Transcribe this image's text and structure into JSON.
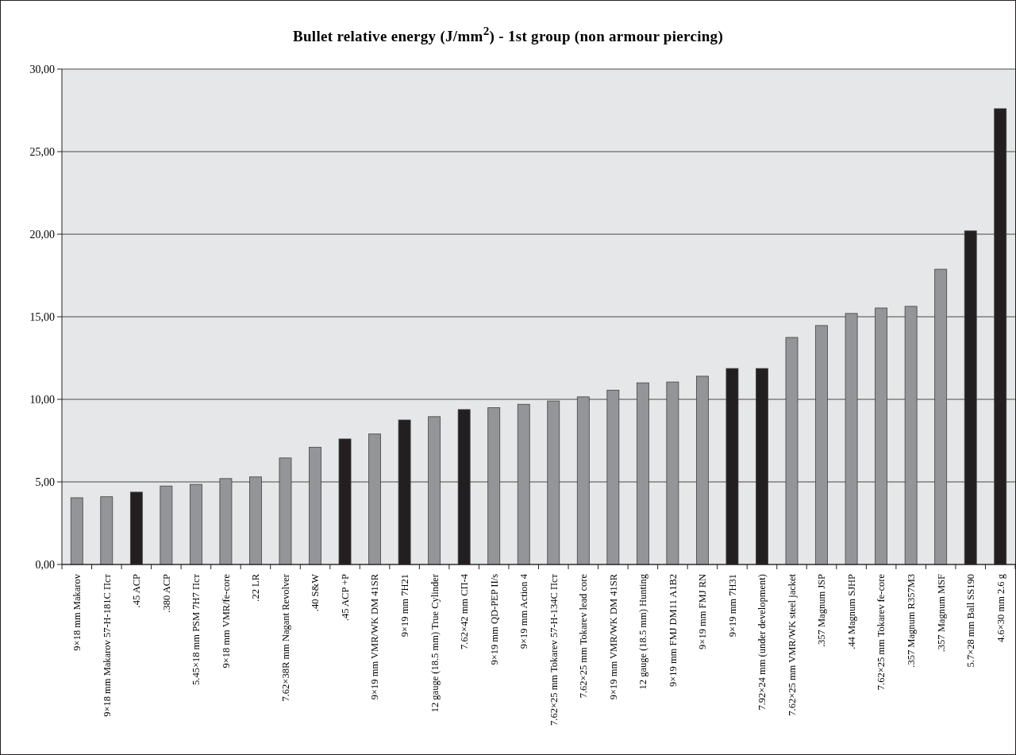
{
  "chart_data": {
    "type": "bar",
    "title": "Bullet relative energy (J/mm$^{2}$) - 1st group (non armour piercing)",
    "categories": [
      "9×18 mm Makarov",
      "9×18 mm Makarov 57-Н-181С Пст",
      ".45 ACP",
      ".380 ACP",
      "5.45×18 mm PSM 7Н7 Пст",
      "9×18 mm VMR/fe-core",
      ".22 LR",
      "7.62×38R mm Nagant Revolver",
      ".40 S&W",
      ".45 ACP +P",
      "9×19 mm VMR/WK DM 41SR",
      "9×19 mm 7Н21",
      "12 gauge (18.5 mm) True Cylinder",
      "7.62×42 mm СП-4",
      "9×19 mm QD-PEP II/s",
      "9×19 mm Action 4",
      "7.62×25 mm Tokarev 57-Н-134С Пст",
      "7.62×25 mm Tokarev lead core",
      "9×19 mm VMR/WK DM 41SR",
      "12 gauge (18.5 mm) Hunting",
      "9×19 mm FMJ DM11 A1B2",
      "9×19 mm FMJ RN",
      "9×19 mm 7Н31",
      "7.92×24 mm (under development)",
      "7.62×25 mm VMR/WK steel jacket",
      ".357 Magnum JSP",
      ".44 Magnum SJHP",
      "7.62×25 mm Tokarev fe-core",
      ".357 Magnum R357M3",
      ".357 Magnum MSF",
      "5.7×28 mm Ball SS190",
      "4.6×30 mm 2.6 g"
    ],
    "values": [
      4.04,
      4.1,
      4.38,
      4.75,
      4.85,
      5.2,
      5.3,
      6.45,
      7.1,
      7.6,
      7.9,
      8.75,
      8.95,
      9.38,
      9.5,
      9.7,
      9.9,
      10.15,
      10.55,
      11.0,
      11.05,
      11.4,
      11.87,
      11.87,
      13.75,
      14.47,
      15.2,
      15.53,
      15.63,
      17.88,
      20.2,
      27.6
    ],
    "colors": [
      "#939598",
      "#939598",
      "#231f20",
      "#939598",
      "#939598",
      "#939598",
      "#939598",
      "#939598",
      "#939598",
      "#231f20",
      "#939598",
      "#231f20",
      "#939598",
      "#231f20",
      "#939598",
      "#939598",
      "#939598",
      "#939598",
      "#939598",
      "#939598",
      "#939598",
      "#939598",
      "#231f20",
      "#231f20",
      "#939598",
      "#939598",
      "#939598",
      "#939598",
      "#939598",
      "#939598",
      "#231f20",
      "#231f20"
    ],
    "ylim": [
      0,
      30
    ],
    "yticks": [
      {
        "value": 0,
        "label": "0,00"
      },
      {
        "value": 5,
        "label": "5,00"
      },
      {
        "value": 10,
        "label": "10,00"
      },
      {
        "value": 15,
        "label": "15,00"
      },
      {
        "value": 20,
        "label": "20,00"
      },
      {
        "value": 25,
        "label": "25,00"
      },
      {
        "value": 30,
        "label": "30,00"
      }
    ],
    "grid": "y"
  }
}
